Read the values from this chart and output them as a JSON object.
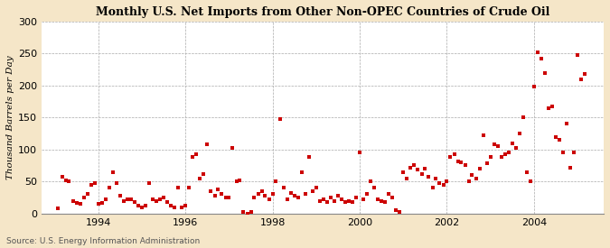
{
  "title": "Monthly U.S. Net Imports from Other Non-OPEC Countries of Crude Oil",
  "ylabel": "Thousand Barrels per Day",
  "source": "Source: U.S. Energy Information Administration",
  "fig_background": "#f5e6c8",
  "plot_background": "#ffffff",
  "dot_color": "#cc0000",
  "ylim": [
    0,
    300
  ],
  "yticks": [
    0,
    50,
    100,
    150,
    200,
    250,
    300
  ],
  "xlim_start": 1992.7,
  "xlim_end": 2005.6,
  "xtick_years": [
    1994,
    1996,
    1998,
    2000,
    2002,
    2004
  ],
  "data": [
    [
      1993.08,
      8
    ],
    [
      1993.17,
      57
    ],
    [
      1993.25,
      52
    ],
    [
      1993.33,
      50
    ],
    [
      1993.42,
      20
    ],
    [
      1993.5,
      17
    ],
    [
      1993.58,
      15
    ],
    [
      1993.67,
      25
    ],
    [
      1993.75,
      30
    ],
    [
      1993.83,
      45
    ],
    [
      1993.92,
      48
    ],
    [
      1994.0,
      15
    ],
    [
      1994.08,
      17
    ],
    [
      1994.17,
      22
    ],
    [
      1994.25,
      40
    ],
    [
      1994.33,
      65
    ],
    [
      1994.42,
      47
    ],
    [
      1994.5,
      28
    ],
    [
      1994.58,
      20
    ],
    [
      1994.67,
      22
    ],
    [
      1994.75,
      22
    ],
    [
      1994.83,
      18
    ],
    [
      1994.92,
      12
    ],
    [
      1995.0,
      10
    ],
    [
      1995.08,
      12
    ],
    [
      1995.17,
      47
    ],
    [
      1995.25,
      22
    ],
    [
      1995.33,
      20
    ],
    [
      1995.42,
      22
    ],
    [
      1995.5,
      25
    ],
    [
      1995.58,
      18
    ],
    [
      1995.67,
      12
    ],
    [
      1995.75,
      10
    ],
    [
      1995.83,
      40
    ],
    [
      1995.92,
      10
    ],
    [
      1996.0,
      12
    ],
    [
      1996.08,
      40
    ],
    [
      1996.17,
      88
    ],
    [
      1996.25,
      92
    ],
    [
      1996.33,
      55
    ],
    [
      1996.42,
      62
    ],
    [
      1996.5,
      108
    ],
    [
      1996.58,
      35
    ],
    [
      1996.67,
      28
    ],
    [
      1996.75,
      38
    ],
    [
      1996.83,
      30
    ],
    [
      1996.92,
      25
    ],
    [
      1997.0,
      25
    ],
    [
      1997.08,
      103
    ],
    [
      1997.17,
      50
    ],
    [
      1997.25,
      52
    ],
    [
      1997.33,
      2
    ],
    [
      1997.42,
      0
    ],
    [
      1997.5,
      2
    ],
    [
      1997.58,
      25
    ],
    [
      1997.67,
      30
    ],
    [
      1997.75,
      35
    ],
    [
      1997.83,
      28
    ],
    [
      1997.92,
      22
    ],
    [
      1998.0,
      30
    ],
    [
      1998.08,
      50
    ],
    [
      1998.17,
      148
    ],
    [
      1998.25,
      40
    ],
    [
      1998.33,
      22
    ],
    [
      1998.42,
      32
    ],
    [
      1998.5,
      28
    ],
    [
      1998.58,
      25
    ],
    [
      1998.67,
      65
    ],
    [
      1998.75,
      30
    ],
    [
      1998.83,
      88
    ],
    [
      1998.92,
      35
    ],
    [
      1999.0,
      40
    ],
    [
      1999.08,
      20
    ],
    [
      1999.17,
      22
    ],
    [
      1999.25,
      18
    ],
    [
      1999.33,
      25
    ],
    [
      1999.42,
      20
    ],
    [
      1999.5,
      28
    ],
    [
      1999.58,
      22
    ],
    [
      1999.67,
      18
    ],
    [
      1999.75,
      20
    ],
    [
      1999.83,
      18
    ],
    [
      1999.92,
      25
    ],
    [
      2000.0,
      95
    ],
    [
      2000.08,
      22
    ],
    [
      2000.17,
      30
    ],
    [
      2000.25,
      50
    ],
    [
      2000.33,
      40
    ],
    [
      2000.42,
      22
    ],
    [
      2000.5,
      20
    ],
    [
      2000.58,
      18
    ],
    [
      2000.67,
      30
    ],
    [
      2000.75,
      25
    ],
    [
      2000.83,
      5
    ],
    [
      2000.92,
      2
    ],
    [
      2001.0,
      65
    ],
    [
      2001.08,
      55
    ],
    [
      2001.17,
      72
    ],
    [
      2001.25,
      75
    ],
    [
      2001.33,
      68
    ],
    [
      2001.42,
      62
    ],
    [
      2001.5,
      70
    ],
    [
      2001.58,
      58
    ],
    [
      2001.67,
      40
    ],
    [
      2001.75,
      55
    ],
    [
      2001.83,
      48
    ],
    [
      2001.92,
      45
    ],
    [
      2002.0,
      50
    ],
    [
      2002.08,
      88
    ],
    [
      2002.17,
      92
    ],
    [
      2002.25,
      82
    ],
    [
      2002.33,
      80
    ],
    [
      2002.42,
      75
    ],
    [
      2002.5,
      50
    ],
    [
      2002.58,
      60
    ],
    [
      2002.67,
      55
    ],
    [
      2002.75,
      70
    ],
    [
      2002.83,
      122
    ],
    [
      2002.92,
      78
    ],
    [
      2003.0,
      88
    ],
    [
      2003.08,
      108
    ],
    [
      2003.17,
      105
    ],
    [
      2003.25,
      88
    ],
    [
      2003.33,
      92
    ],
    [
      2003.42,
      95
    ],
    [
      2003.5,
      110
    ],
    [
      2003.58,
      102
    ],
    [
      2003.67,
      125
    ],
    [
      2003.75,
      150
    ],
    [
      2003.83,
      65
    ],
    [
      2003.92,
      50
    ],
    [
      2004.0,
      198
    ],
    [
      2004.08,
      252
    ],
    [
      2004.17,
      242
    ],
    [
      2004.25,
      220
    ],
    [
      2004.33,
      165
    ],
    [
      2004.42,
      168
    ],
    [
      2004.5,
      120
    ],
    [
      2004.58,
      115
    ],
    [
      2004.67,
      95
    ],
    [
      2004.75,
      140
    ],
    [
      2004.83,
      72
    ],
    [
      2004.92,
      95
    ],
    [
      2005.0,
      248
    ],
    [
      2005.08,
      210
    ],
    [
      2005.17,
      218
    ]
  ]
}
